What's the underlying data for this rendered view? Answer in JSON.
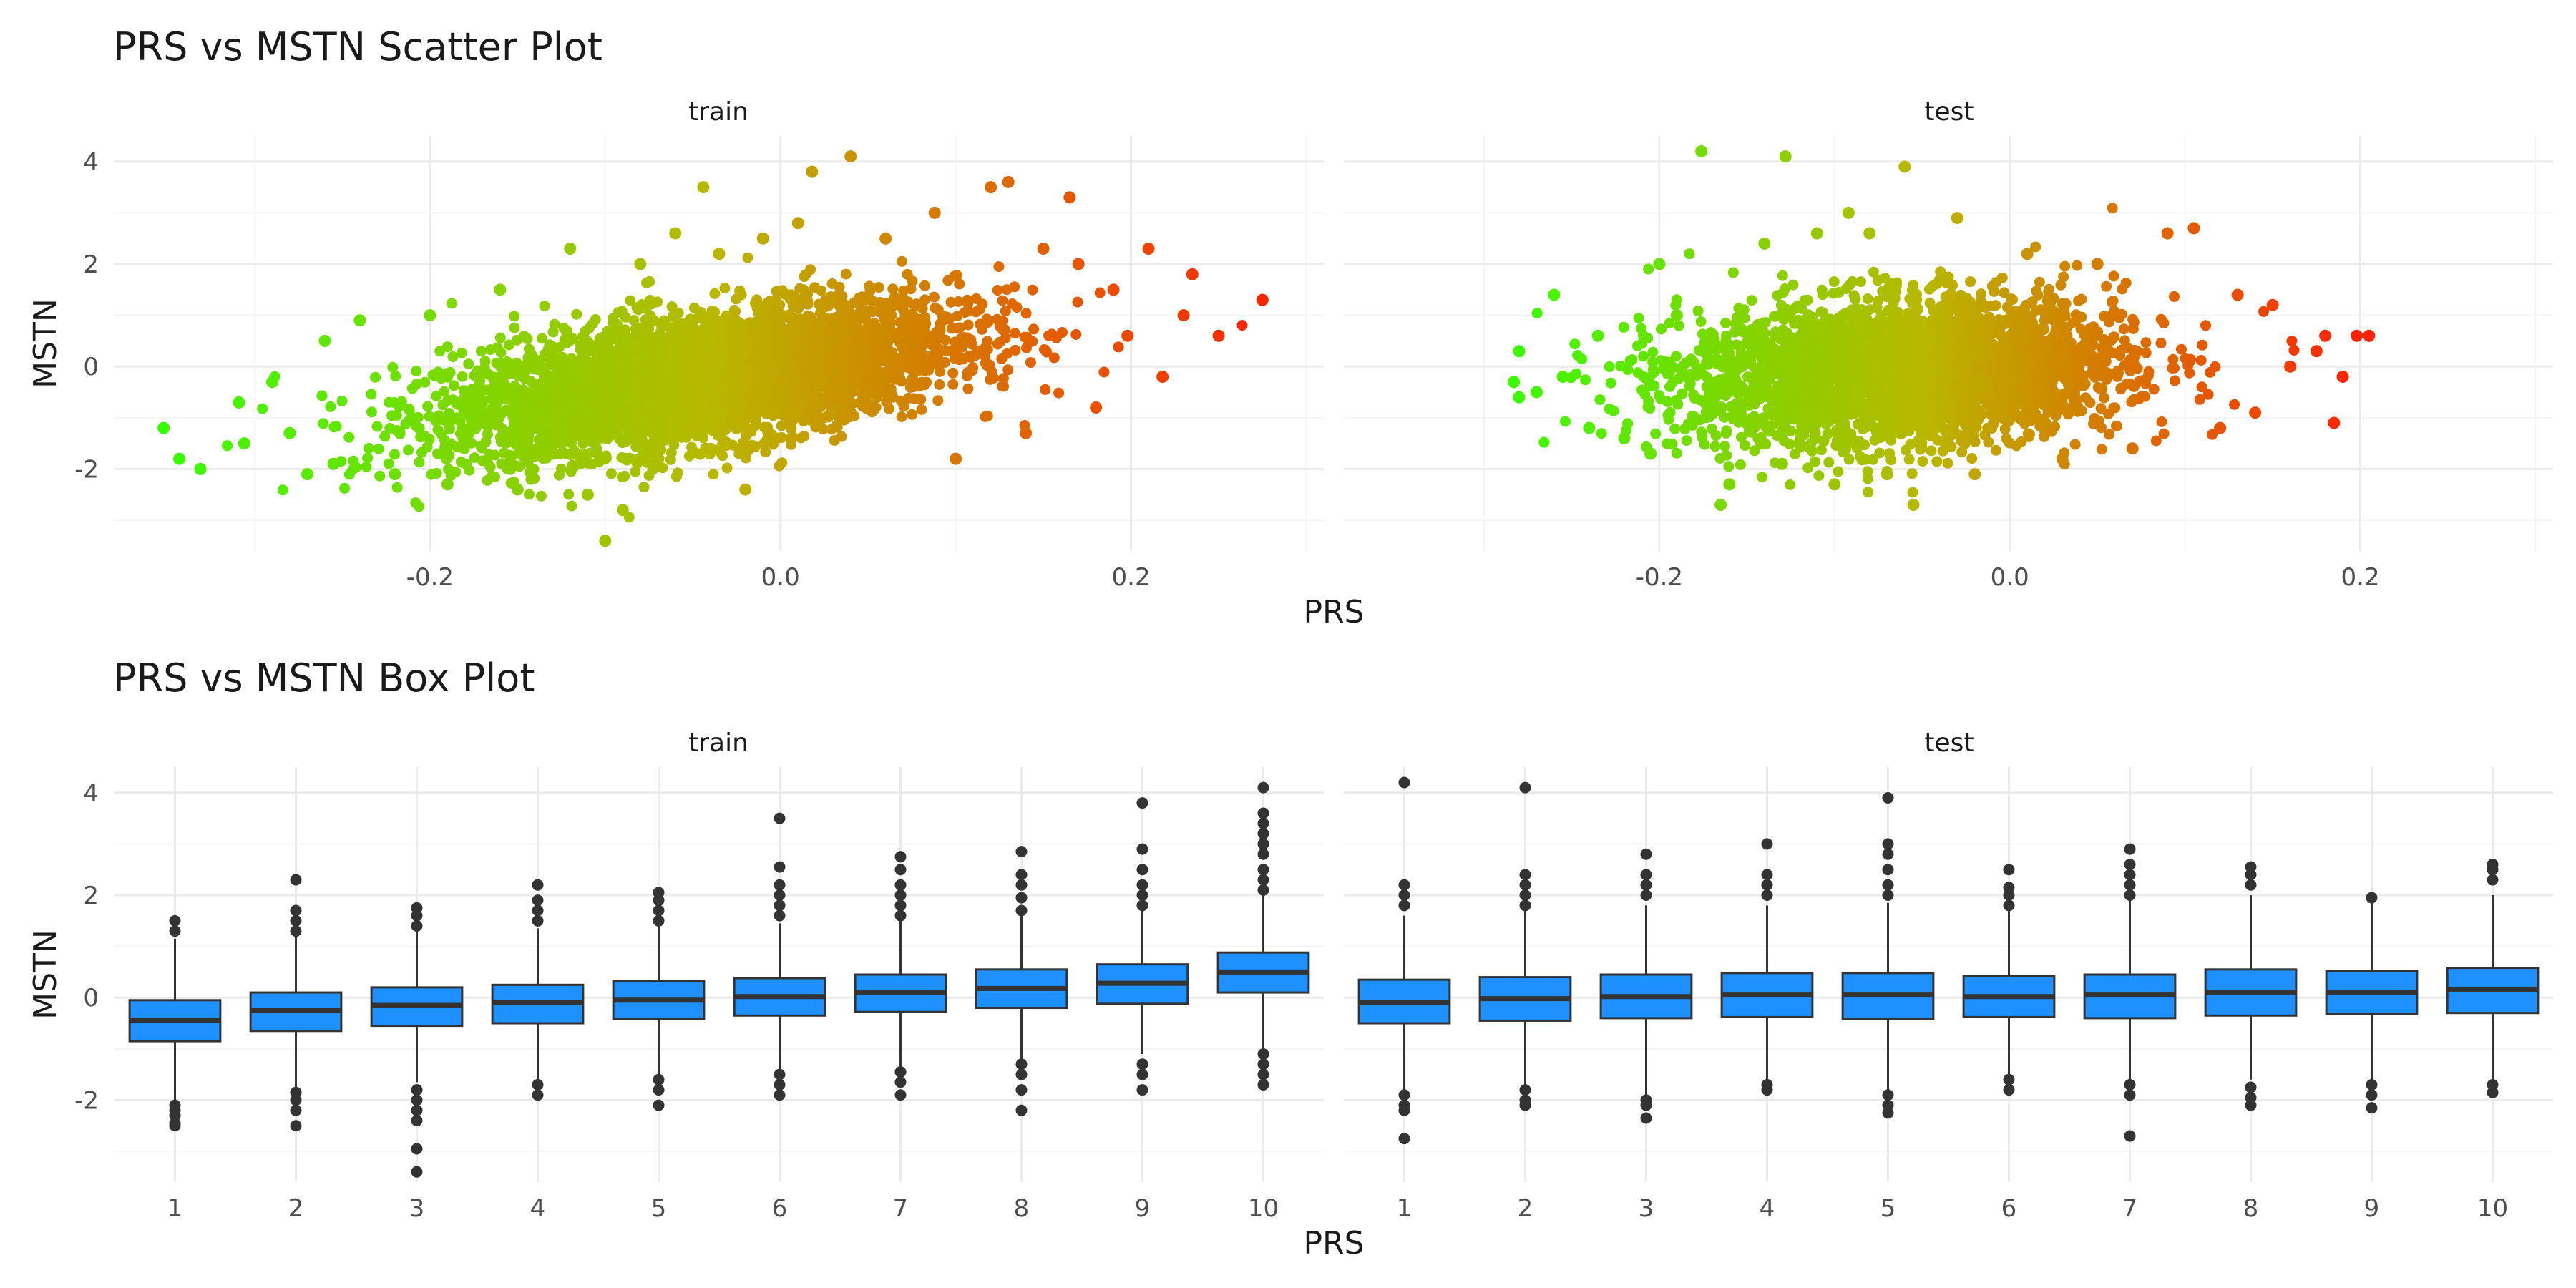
{
  "colors": {
    "low": "#33ff00",
    "mid": "#b8b800",
    "high": "#ff2200",
    "box_fill": "#1e90ff",
    "box_line": "#333333",
    "grid_major": "#ebebeb",
    "grid_minor": "#f5f5f5"
  },
  "chart_data": [
    {
      "type": "scatter",
      "title": "PRS vs MSTN Scatter Plot",
      "xlabel": "PRS",
      "ylabel": "MSTN",
      "facets": [
        "train",
        "test"
      ],
      "xlim": [
        -0.38,
        0.31
      ],
      "ylim": [
        -3.6,
        4.5
      ],
      "xticks": [
        -0.2,
        0.0,
        0.2
      ],
      "xtick_labels": [
        "-0.2",
        "0.0",
        "0.2"
      ],
      "yticks": [
        4,
        2,
        0,
        -2
      ],
      "ytick_labels": [
        "4",
        "2",
        "0",
        "-2"
      ],
      "color_scale": "gradient by PRS: green (low) to orange-red (high)",
      "series": [
        {
          "facet": "train",
          "points": [
            [
              -0.352,
              -1.2
            ],
            [
              -0.343,
              -1.8
            ],
            [
              -0.331,
              -2.0
            ],
            [
              -0.309,
              -0.7
            ],
            [
              -0.306,
              -1.5
            ],
            [
              -0.29,
              -0.3
            ],
            [
              -0.28,
              -1.3
            ],
            [
              -0.27,
              -2.1
            ],
            [
              -0.26,
              0.5
            ],
            [
              -0.255,
              -1.9
            ],
            [
              -0.24,
              0.9
            ],
            [
              -0.22,
              -2.1
            ],
            [
              -0.2,
              1.0
            ],
            [
              -0.19,
              -2.3
            ],
            [
              -0.16,
              1.5
            ],
            [
              -0.15,
              -2.4
            ],
            [
              -0.12,
              2.3
            ],
            [
              -0.11,
              -2.5
            ],
            [
              -0.1,
              -3.4
            ],
            [
              -0.09,
              -2.8
            ],
            [
              -0.08,
              2.0
            ],
            [
              -0.06,
              2.6
            ],
            [
              -0.044,
              3.5
            ],
            [
              -0.035,
              2.2
            ],
            [
              -0.02,
              -2.4
            ],
            [
              -0.01,
              2.5
            ],
            [
              0.01,
              2.8
            ],
            [
              0.018,
              3.8
            ],
            [
              0.04,
              4.1
            ],
            [
              0.06,
              2.5
            ],
            [
              0.088,
              3.0
            ],
            [
              0.1,
              -1.8
            ],
            [
              0.12,
              3.5
            ],
            [
              0.13,
              3.6
            ],
            [
              0.14,
              -1.3
            ],
            [
              0.15,
              2.3
            ],
            [
              0.165,
              3.3
            ],
            [
              0.17,
              2.0
            ],
            [
              0.18,
              -0.8
            ],
            [
              0.19,
              1.5
            ],
            [
              0.198,
              0.6
            ],
            [
              0.21,
              2.3
            ],
            [
              0.218,
              -0.2
            ],
            [
              0.23,
              1.0
            ],
            [
              0.235,
              1.8
            ],
            [
              0.25,
              0.6
            ],
            [
              0.275,
              1.3
            ]
          ]
        },
        {
          "facet": "test",
          "points": [
            [
              -0.283,
              -0.3
            ],
            [
              -0.28,
              0.3
            ],
            [
              -0.28,
              -0.6
            ],
            [
              -0.27,
              -0.5
            ],
            [
              -0.26,
              1.4
            ],
            [
              -0.255,
              -0.2
            ],
            [
              -0.24,
              -1.2
            ],
            [
              -0.235,
              0.6
            ],
            [
              -0.22,
              -1.4
            ],
            [
              -0.205,
              -1.7
            ],
            [
              -0.2,
              2.0
            ],
            [
              -0.19,
              1.0
            ],
            [
              -0.176,
              4.2
            ],
            [
              -0.165,
              -2.7
            ],
            [
              -0.16,
              -2.3
            ],
            [
              -0.14,
              2.4
            ],
            [
              -0.13,
              -1.9
            ],
            [
              -0.128,
              4.1
            ],
            [
              -0.11,
              2.6
            ],
            [
              -0.1,
              -2.3
            ],
            [
              -0.092,
              3.0
            ],
            [
              -0.08,
              2.6
            ],
            [
              -0.07,
              -2.1
            ],
            [
              -0.06,
              3.9
            ],
            [
              -0.055,
              -2.7
            ],
            [
              -0.03,
              2.9
            ],
            [
              -0.02,
              -2.1
            ],
            [
              0.01,
              2.2
            ],
            [
              0.03,
              -1.8
            ],
            [
              0.05,
              2.0
            ],
            [
              0.07,
              -1.6
            ],
            [
              0.09,
              2.6
            ],
            [
              0.105,
              2.7
            ],
            [
              0.12,
              -1.2
            ],
            [
              0.13,
              1.4
            ],
            [
              0.14,
              -0.9
            ],
            [
              0.15,
              1.2
            ],
            [
              0.16,
              0.0
            ],
            [
              0.175,
              0.3
            ],
            [
              0.18,
              0.6
            ],
            [
              0.185,
              -1.1
            ],
            [
              0.19,
              -0.2
            ],
            [
              0.198,
              0.6
            ],
            [
              0.205,
              0.6
            ]
          ]
        }
      ]
    },
    {
      "type": "box",
      "title": "PRS vs MSTN Box Plot",
      "xlabel": "PRS",
      "ylabel": "MSTN",
      "facets": [
        "train",
        "test"
      ],
      "categories": [
        "1",
        "2",
        "3",
        "4",
        "5",
        "6",
        "7",
        "8",
        "9",
        "10"
      ],
      "ylim": [
        -3.6,
        4.5
      ],
      "yticks": [
        4,
        2,
        0,
        -2
      ],
      "ytick_labels": [
        "4",
        "2",
        "0",
        "-2"
      ],
      "series": [
        {
          "facet": "train",
          "boxes": [
            {
              "q1": -0.85,
              "median": -0.45,
              "q3": -0.05,
              "wlo": -2.0,
              "whi": 1.15,
              "outliers": [
                -2.1,
                -2.2,
                -2.3,
                -2.45,
                -2.5,
                1.3,
                1.5
              ]
            },
            {
              "q1": -0.65,
              "median": -0.25,
              "q3": 0.1,
              "wlo": -1.75,
              "whi": 1.2,
              "outliers": [
                -1.85,
                -2.0,
                -2.2,
                -2.5,
                1.3,
                1.5,
                1.7,
                2.3
              ]
            },
            {
              "q1": -0.55,
              "median": -0.15,
              "q3": 0.2,
              "wlo": -1.65,
              "whi": 1.3,
              "outliers": [
                -1.8,
                -2.0,
                -2.2,
                -2.4,
                -2.95,
                -3.4,
                1.4,
                1.6,
                1.75
              ]
            },
            {
              "q1": -0.5,
              "median": -0.1,
              "q3": 0.25,
              "wlo": -1.6,
              "whi": 1.35,
              "outliers": [
                -1.7,
                -1.9,
                1.5,
                1.7,
                1.9,
                2.2
              ]
            },
            {
              "q1": -0.42,
              "median": -0.05,
              "q3": 0.32,
              "wlo": -1.5,
              "whi": 1.4,
              "outliers": [
                -1.6,
                -1.8,
                -2.1,
                1.5,
                1.7,
                1.9,
                2.05
              ]
            },
            {
              "q1": -0.35,
              "median": 0.02,
              "q3": 0.38,
              "wlo": -1.45,
              "whi": 1.45,
              "outliers": [
                -1.5,
                -1.7,
                -1.9,
                1.6,
                1.8,
                2.0,
                2.2,
                2.55,
                3.5
              ]
            },
            {
              "q1": -0.28,
              "median": 0.1,
              "q3": 0.45,
              "wlo": -1.35,
              "whi": 1.5,
              "outliers": [
                -1.45,
                -1.65,
                -1.9,
                1.6,
                1.8,
                2.0,
                2.2,
                2.5,
                2.75
              ]
            },
            {
              "q1": -0.2,
              "median": 0.18,
              "q3": 0.55,
              "wlo": -1.2,
              "whi": 1.6,
              "outliers": [
                -1.3,
                -1.5,
                -1.8,
                -2.2,
                1.7,
                1.95,
                2.2,
                2.4,
                2.85
              ]
            },
            {
              "q1": -0.12,
              "median": 0.28,
              "q3": 0.65,
              "wlo": -1.1,
              "whi": 1.7,
              "outliers": [
                -1.3,
                -1.5,
                -1.8,
                1.8,
                2.0,
                2.2,
                2.5,
                2.9,
                3.8
              ]
            },
            {
              "q1": 0.1,
              "median": 0.5,
              "q3": 0.88,
              "wlo": -1.0,
              "whi": 2.0,
              "outliers": [
                -1.1,
                -1.3,
                -1.5,
                -1.7,
                2.1,
                2.3,
                2.5,
                2.8,
                3.0,
                3.2,
                3.4,
                3.6,
                4.1
              ]
            }
          ]
        },
        {
          "facet": "test",
          "boxes": [
            {
              "q1": -0.5,
              "median": -0.1,
              "q3": 0.35,
              "wlo": -1.8,
              "whi": 1.6,
              "outliers": [
                -1.9,
                -2.1,
                -2.2,
                -2.75,
                1.8,
                2.0,
                2.2,
                4.2
              ]
            },
            {
              "q1": -0.45,
              "median": -0.02,
              "q3": 0.4,
              "wlo": -1.7,
              "whi": 1.7,
              "outliers": [
                -1.8,
                -2.0,
                -2.1,
                1.8,
                2.0,
                2.2,
                2.4,
                4.1
              ]
            },
            {
              "q1": -0.4,
              "median": 0.02,
              "q3": 0.45,
              "wlo": -1.9,
              "whi": 1.8,
              "outliers": [
                -2.0,
                -2.1,
                -2.35,
                2.0,
                2.2,
                2.4,
                2.8
              ]
            },
            {
              "q1": -0.38,
              "median": 0.05,
              "q3": 0.48,
              "wlo": -1.6,
              "whi": 1.8,
              "outliers": [
                -1.7,
                -1.8,
                2.0,
                2.2,
                2.4,
                3.0
              ]
            },
            {
              "q1": -0.42,
              "median": 0.05,
              "q3": 0.48,
              "wlo": -1.8,
              "whi": 1.85,
              "outliers": [
                -1.9,
                -2.1,
                -2.25,
                2.0,
                2.2,
                2.5,
                2.8,
                3.0,
                3.9
              ]
            },
            {
              "q1": -0.38,
              "median": 0.02,
              "q3": 0.42,
              "wlo": -1.5,
              "whi": 1.7,
              "outliers": [
                -1.6,
                -1.8,
                1.8,
                2.0,
                2.15,
                2.5
              ]
            },
            {
              "q1": -0.4,
              "median": 0.05,
              "q3": 0.45,
              "wlo": -1.6,
              "whi": 1.9,
              "outliers": [
                -1.7,
                -1.9,
                -2.7,
                2.0,
                2.2,
                2.4,
                2.6,
                2.9
              ]
            },
            {
              "q1": -0.35,
              "median": 0.1,
              "q3": 0.55,
              "wlo": -1.6,
              "whi": 2.0,
              "outliers": [
                -1.75,
                -1.95,
                -2.1,
                2.2,
                2.4,
                2.55
              ]
            },
            {
              "q1": -0.32,
              "median": 0.1,
              "q3": 0.52,
              "wlo": -1.6,
              "whi": 1.9,
              "outliers": [
                -1.7,
                -1.9,
                -2.15,
                1.95
              ]
            },
            {
              "q1": -0.3,
              "median": 0.15,
              "q3": 0.58,
              "wlo": -1.6,
              "whi": 2.0,
              "outliers": [
                -1.7,
                -1.85,
                2.3,
                2.5,
                2.6
              ]
            }
          ]
        }
      ]
    }
  ]
}
